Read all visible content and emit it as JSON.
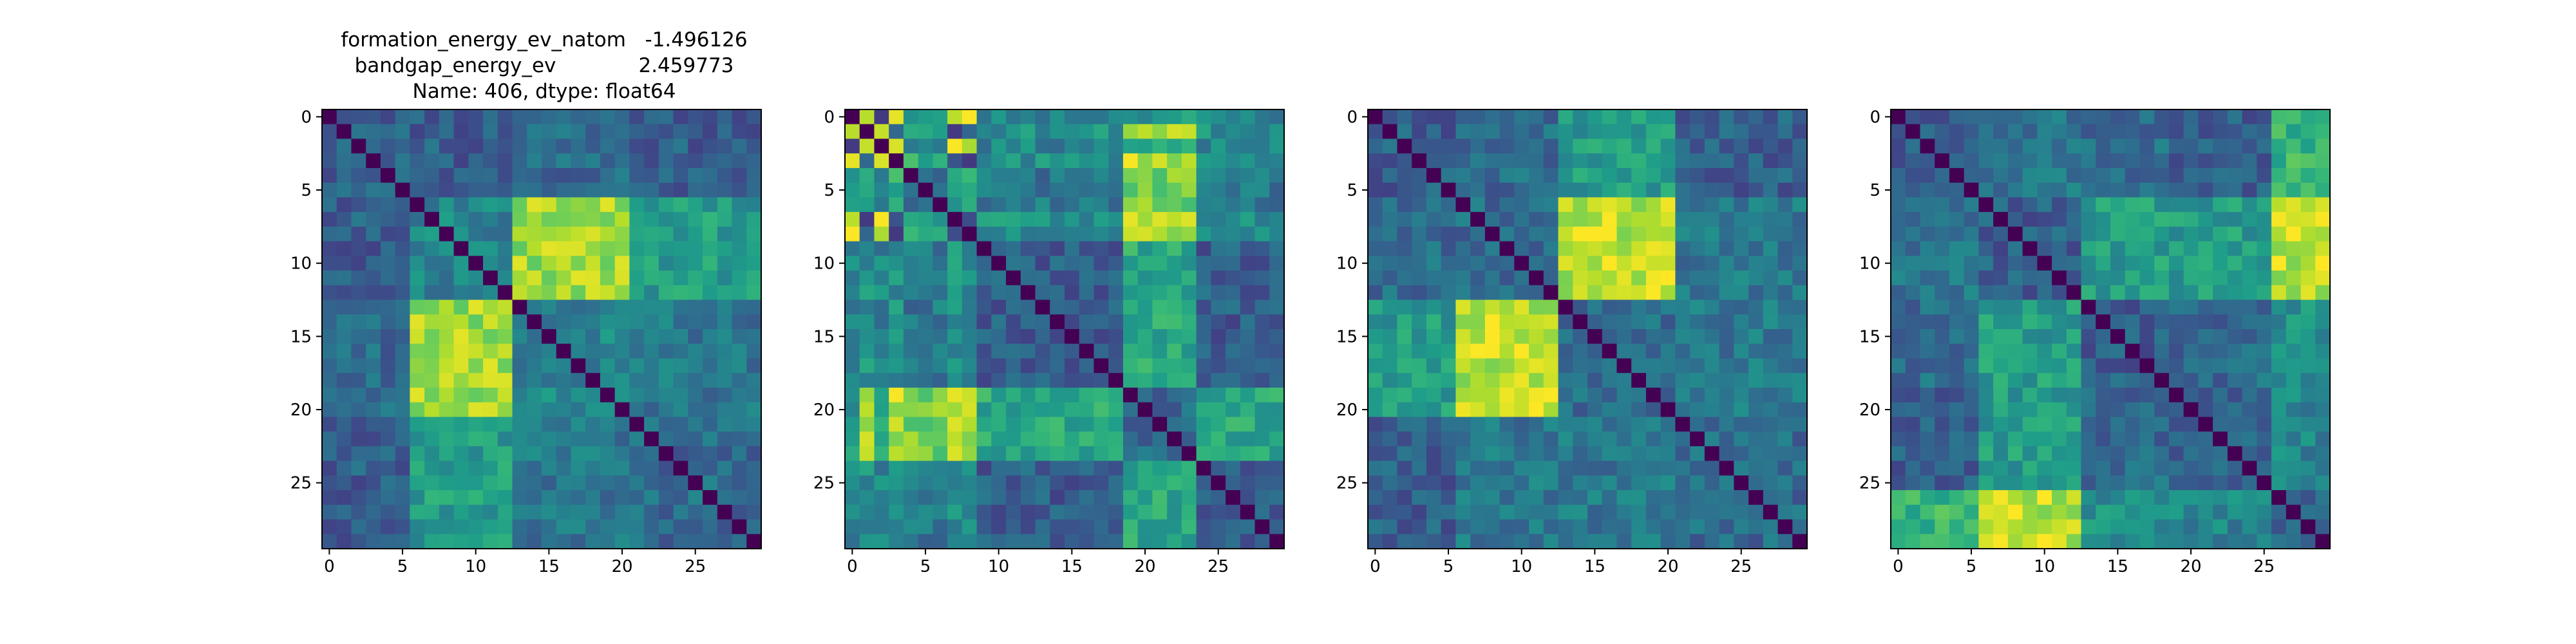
{
  "figure": {
    "title_lines": [
      "formation_energy_ev_natom   -1.496126",
      "bandgap_energy_ev             2.459773",
      "Name: 406, dtype: float64"
    ]
  },
  "colormap": {
    "name": "viridis",
    "stops": [
      "#440154",
      "#482878",
      "#3e4a89",
      "#31688e",
      "#26828e",
      "#1f9e89",
      "#35b779",
      "#6ece58",
      "#b5de2b",
      "#fde725"
    ]
  },
  "chart_data": [
    {
      "type": "heatmap",
      "size": 30,
      "xticks": [
        0,
        5,
        10,
        15,
        20,
        25
      ],
      "yticks": [
        0,
        5,
        10,
        15,
        20,
        25
      ],
      "xlim": [
        -0.5,
        29.5
      ],
      "ylim": [
        29.5,
        -0.5
      ],
      "groups": [
        0,
        0,
        0,
        0,
        0,
        0,
        1,
        1,
        1,
        1,
        1,
        1,
        1,
        2,
        2,
        2,
        2,
        2,
        2,
        2,
        2,
        3,
        3,
        3,
        3,
        3,
        3,
        3,
        3,
        3
      ],
      "group_values": [
        [
          0.3,
          0.3,
          0.35,
          0.3
        ],
        [
          0.3,
          0.45,
          0.85,
          0.55
        ],
        [
          0.35,
          0.85,
          0.45,
          0.4
        ],
        [
          0.3,
          0.55,
          0.4,
          0.35
        ]
      ],
      "diagonal": 0.0,
      "seed": 11
    },
    {
      "type": "heatmap",
      "size": 30,
      "xticks": [
        0,
        5,
        10,
        15,
        20,
        25
      ],
      "yticks": [
        0,
        5,
        10,
        15,
        20,
        25
      ],
      "xlim": [
        -0.5,
        29.5
      ],
      "ylim": [
        29.5,
        -0.5
      ],
      "groups": [
        4,
        5,
        4,
        5,
        0,
        0,
        0,
        5,
        5,
        1,
        1,
        1,
        1,
        1,
        1,
        1,
        1,
        1,
        1,
        2,
        2,
        2,
        2,
        2,
        1,
        1,
        1,
        1,
        1,
        1
      ],
      "group_values": [
        [
          0.4,
          0.4,
          0.8,
          0.35,
          0.5,
          0.6
        ],
        [
          0.4,
          0.3,
          0.6,
          0.3,
          0.45,
          0.5
        ],
        [
          0.8,
          0.6,
          0.35,
          0.4,
          0.55,
          0.9
        ],
        [
          0.35,
          0.3,
          0.4,
          0.25,
          0.35,
          0.4
        ],
        [
          0.5,
          0.45,
          0.55,
          0.35,
          0.2,
          0.95
        ],
        [
          0.6,
          0.5,
          0.9,
          0.4,
          0.95,
          0.25
        ]
      ],
      "diagonal": 0.0,
      "seed": 23
    },
    {
      "type": "heatmap",
      "size": 30,
      "xticks": [
        0,
        5,
        10,
        15,
        20,
        25
      ],
      "yticks": [
        0,
        5,
        10,
        15,
        20,
        25
      ],
      "xlim": [
        -0.5,
        29.5
      ],
      "ylim": [
        29.5,
        -0.5
      ],
      "groups": [
        0,
        0,
        0,
        0,
        0,
        0,
        1,
        1,
        1,
        1,
        1,
        1,
        1,
        2,
        2,
        2,
        2,
        2,
        2,
        2,
        2,
        3,
        3,
        3,
        3,
        3,
        3,
        3,
        3,
        3
      ],
      "group_values": [
        [
          0.3,
          0.35,
          0.55,
          0.3
        ],
        [
          0.35,
          0.35,
          0.9,
          0.4
        ],
        [
          0.55,
          0.9,
          0.35,
          0.4
        ],
        [
          0.3,
          0.4,
          0.4,
          0.35
        ]
      ],
      "diagonal": 0.0,
      "seed": 37
    },
    {
      "type": "heatmap",
      "size": 30,
      "xticks": [
        0,
        5,
        10,
        15,
        20,
        25
      ],
      "yticks": [
        0,
        5,
        10,
        15,
        20,
        25
      ],
      "xlim": [
        -0.5,
        29.5
      ],
      "ylim": [
        29.5,
        -0.5
      ],
      "groups": [
        0,
        0,
        0,
        0,
        0,
        0,
        1,
        1,
        1,
        1,
        1,
        1,
        1,
        2,
        2,
        2,
        2,
        2,
        2,
        3,
        3,
        3,
        3,
        3,
        3,
        3,
        4,
        4,
        4,
        4
      ],
      "group_values": [
        [
          0.3,
          0.4,
          0.35,
          0.3,
          0.65
        ],
        [
          0.4,
          0.3,
          0.55,
          0.55,
          0.9
        ],
        [
          0.35,
          0.55,
          0.3,
          0.35,
          0.5
        ],
        [
          0.3,
          0.55,
          0.35,
          0.3,
          0.45
        ],
        [
          0.65,
          0.9,
          0.5,
          0.45,
          0.3
        ]
      ],
      "diagonal": 0.0,
      "seed": 53
    }
  ]
}
